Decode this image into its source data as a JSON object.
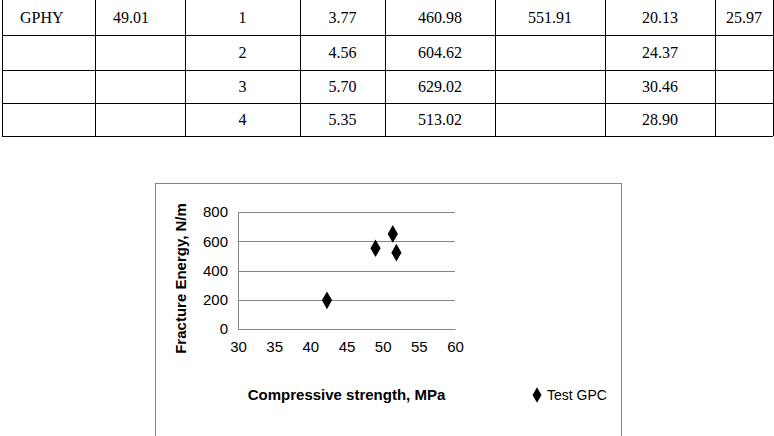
{
  "table": {
    "rows": [
      [
        "GPHY",
        "49.01",
        "1",
        "3.77",
        "460.98",
        "551.91",
        "20.13",
        "25.97"
      ],
      [
        null,
        null,
        "2",
        "4.56",
        "604.62",
        null,
        "24.37",
        null
      ],
      [
        null,
        null,
        "3",
        "5.70",
        "629.02",
        null,
        "30.46",
        null
      ],
      [
        null,
        null,
        "4",
        "5.35",
        "513.02",
        null,
        "28.90",
        null
      ]
    ]
  },
  "chart_data": {
    "type": "scatter",
    "x_label": "Compressive strength, MPa",
    "y_label": "Fracture Energy, N/m",
    "series": [
      {
        "name": "Test GPC",
        "color": "#000000",
        "marker": "diamond",
        "x": [
          42.3,
          49.01,
          51.4,
          51.9
        ],
        "values": [
          196,
          551.91,
          650,
          522
        ]
      }
    ],
    "xlim": [
      30,
      60
    ],
    "xticks": [
      30,
      35,
      40,
      45,
      50,
      55,
      60
    ],
    "ylim": [
      0,
      800
    ],
    "yticks": [
      0,
      200,
      400,
      600,
      800
    ],
    "grid": true,
    "legend": "right"
  }
}
